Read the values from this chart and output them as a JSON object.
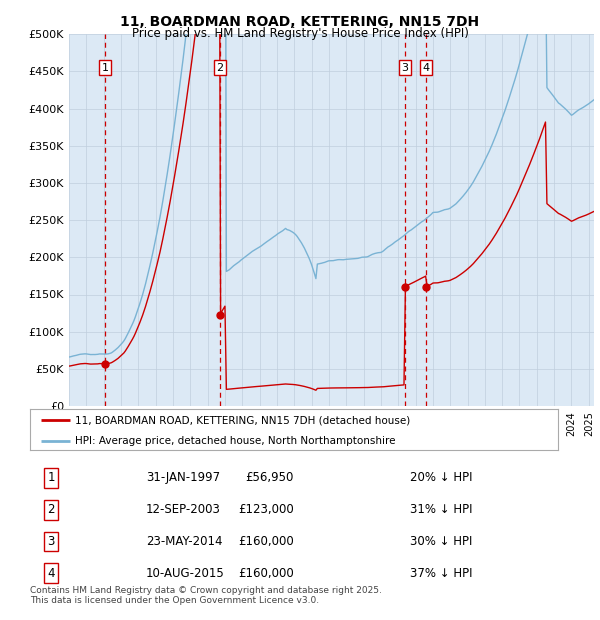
{
  "title": "11, BOARDMAN ROAD, KETTERING, NN15 7DH",
  "subtitle": "Price paid vs. HM Land Registry's House Price Index (HPI)",
  "legend_line1": "11, BOARDMAN ROAD, KETTERING, NN15 7DH (detached house)",
  "legend_line2": "HPI: Average price, detached house, North Northamptonshire",
  "footer": "Contains HM Land Registry data © Crown copyright and database right 2025.\nThis data is licensed under the Open Government Licence v3.0.",
  "transactions": [
    {
      "num": 1,
      "date": "31-JAN-1997",
      "price": "£56,950",
      "hpi": "20% ↓ HPI",
      "year": 1997.08,
      "price_val": 56950
    },
    {
      "num": 2,
      "date": "12-SEP-2003",
      "price": "£123,000",
      "hpi": "31% ↓ HPI",
      "year": 2003.71,
      "price_val": 123000
    },
    {
      "num": 3,
      "date": "23-MAY-2014",
      "price": "£160,000",
      "hpi": "30% ↓ HPI",
      "year": 2014.38,
      "price_val": 160000
    },
    {
      "num": 4,
      "date": "10-AUG-2015",
      "price": "£160,000",
      "hpi": "37% ↓ HPI",
      "year": 2015.6,
      "price_val": 160000
    }
  ],
  "hpi_color": "#7ab3d4",
  "price_color": "#cc0000",
  "vline_color": "#cc0000",
  "box_color": "#cc0000",
  "plot_bg": "#dce9f5",
  "ylim": [
    0,
    500000
  ],
  "xlim": [
    1995.0,
    2025.3
  ],
  "yticks": [
    0,
    50000,
    100000,
    150000,
    200000,
    250000,
    300000,
    350000,
    400000,
    450000,
    500000
  ],
  "xticks": [
    1995,
    1996,
    1997,
    1998,
    1999,
    2000,
    2001,
    2002,
    2003,
    2004,
    2005,
    2006,
    2007,
    2008,
    2009,
    2010,
    2011,
    2012,
    2013,
    2014,
    2015,
    2016,
    2017,
    2018,
    2019,
    2020,
    2021,
    2022,
    2023,
    2024,
    2025
  ]
}
